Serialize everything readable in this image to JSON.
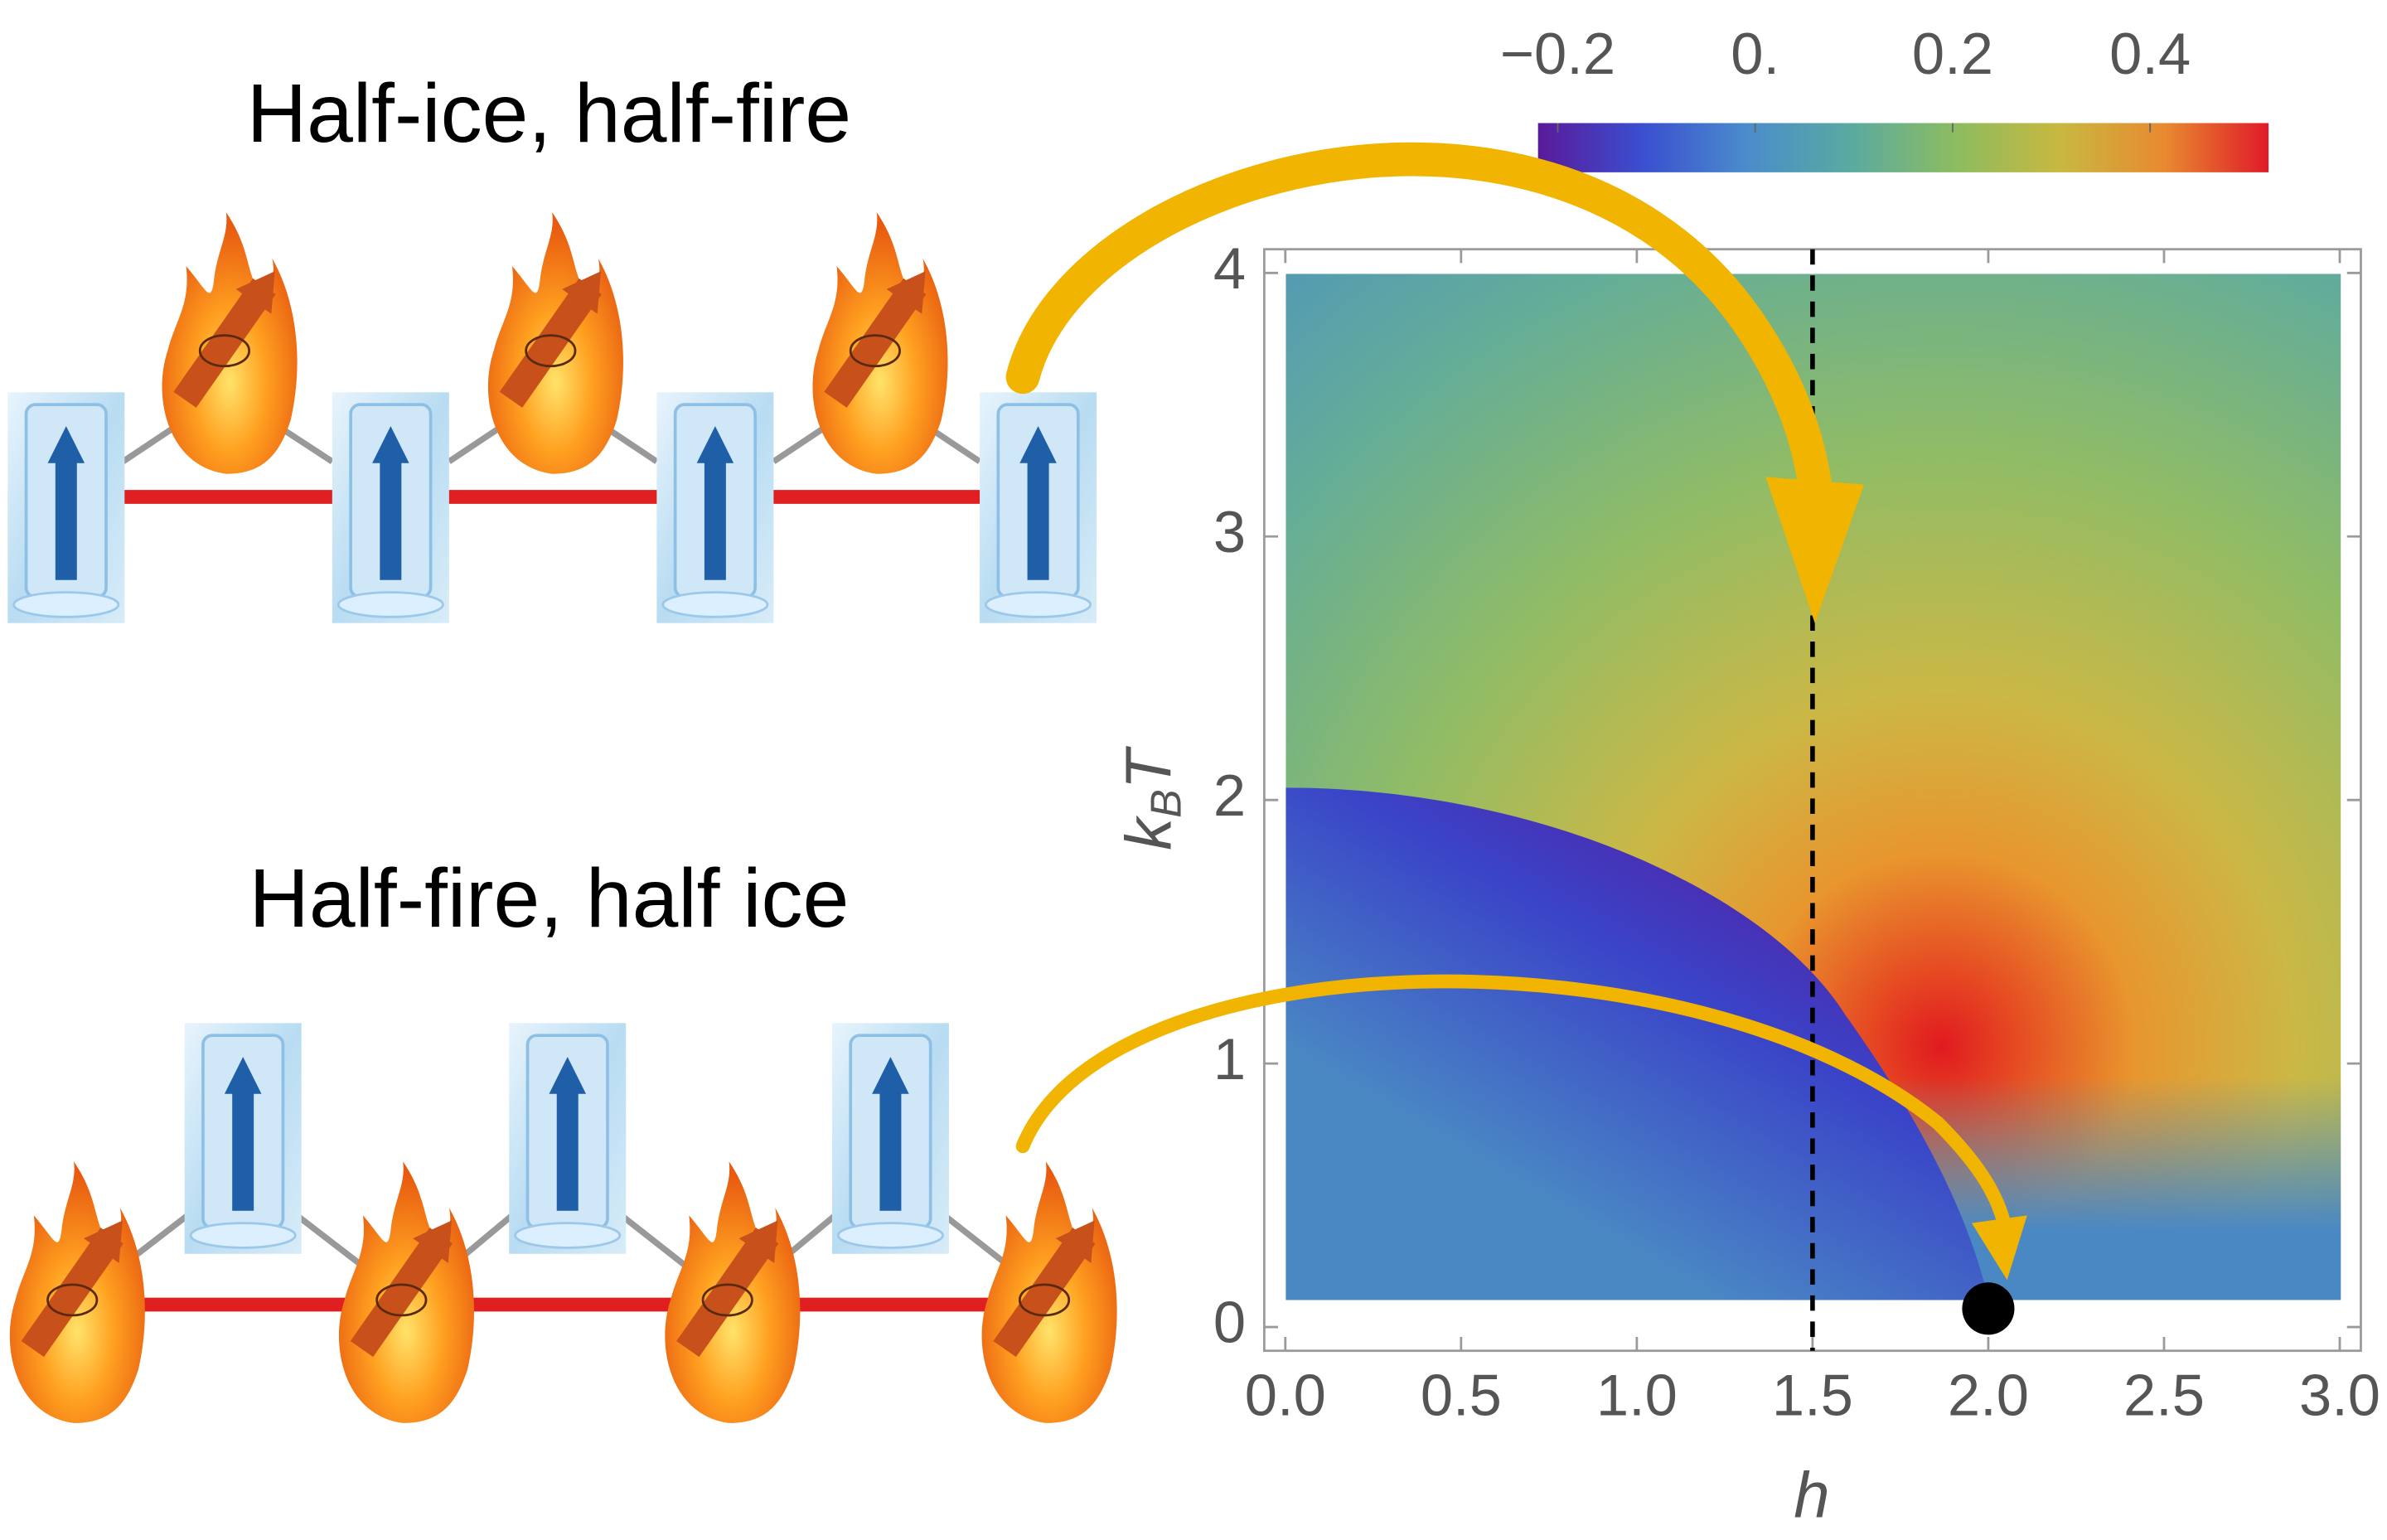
{
  "chart_data": {
    "type": "density",
    "panels": [
      {
        "title": "Half-ice, half-fire"
      },
      {
        "title": "Half-fire, half ice"
      }
    ],
    "xlabel": "h",
    "ylabel": {
      "base": "k",
      "sub": "B",
      "tail": "T"
    },
    "xlim": [
      -0.06,
      3.06
    ],
    "ylim": [
      -0.09,
      4.09
    ],
    "xticks": [
      {
        "value": 0,
        "label": "0.0"
      },
      {
        "value": 0.5,
        "label": "0.5"
      },
      {
        "value": 1,
        "label": "1.0"
      },
      {
        "value": 1.5,
        "label": "1.5"
      },
      {
        "value": 2,
        "label": "2.0"
      },
      {
        "value": 2.5,
        "label": "2.5"
      },
      {
        "value": 3,
        "label": "3.0"
      }
    ],
    "yticks": [
      0,
      1,
      2,
      3,
      4
    ],
    "vline": 1.5,
    "point": {
      "x": 2.0,
      "y": 0.07
    },
    "colorbar": {
      "lim": [
        -0.22,
        0.52
      ],
      "ticks": [
        {
          "value": -0.2,
          "label": "−0.2"
        },
        {
          "value": 0,
          "label": "0."
        },
        0.2,
        0.4
      ],
      "colors": [
        "#5a1a9a",
        "#3a4fd0",
        "#4a8ccc",
        "#5aaaa0",
        "#8cbc60",
        "#c8b840",
        "#e88a30",
        "#e01a28"
      ]
    }
  }
}
